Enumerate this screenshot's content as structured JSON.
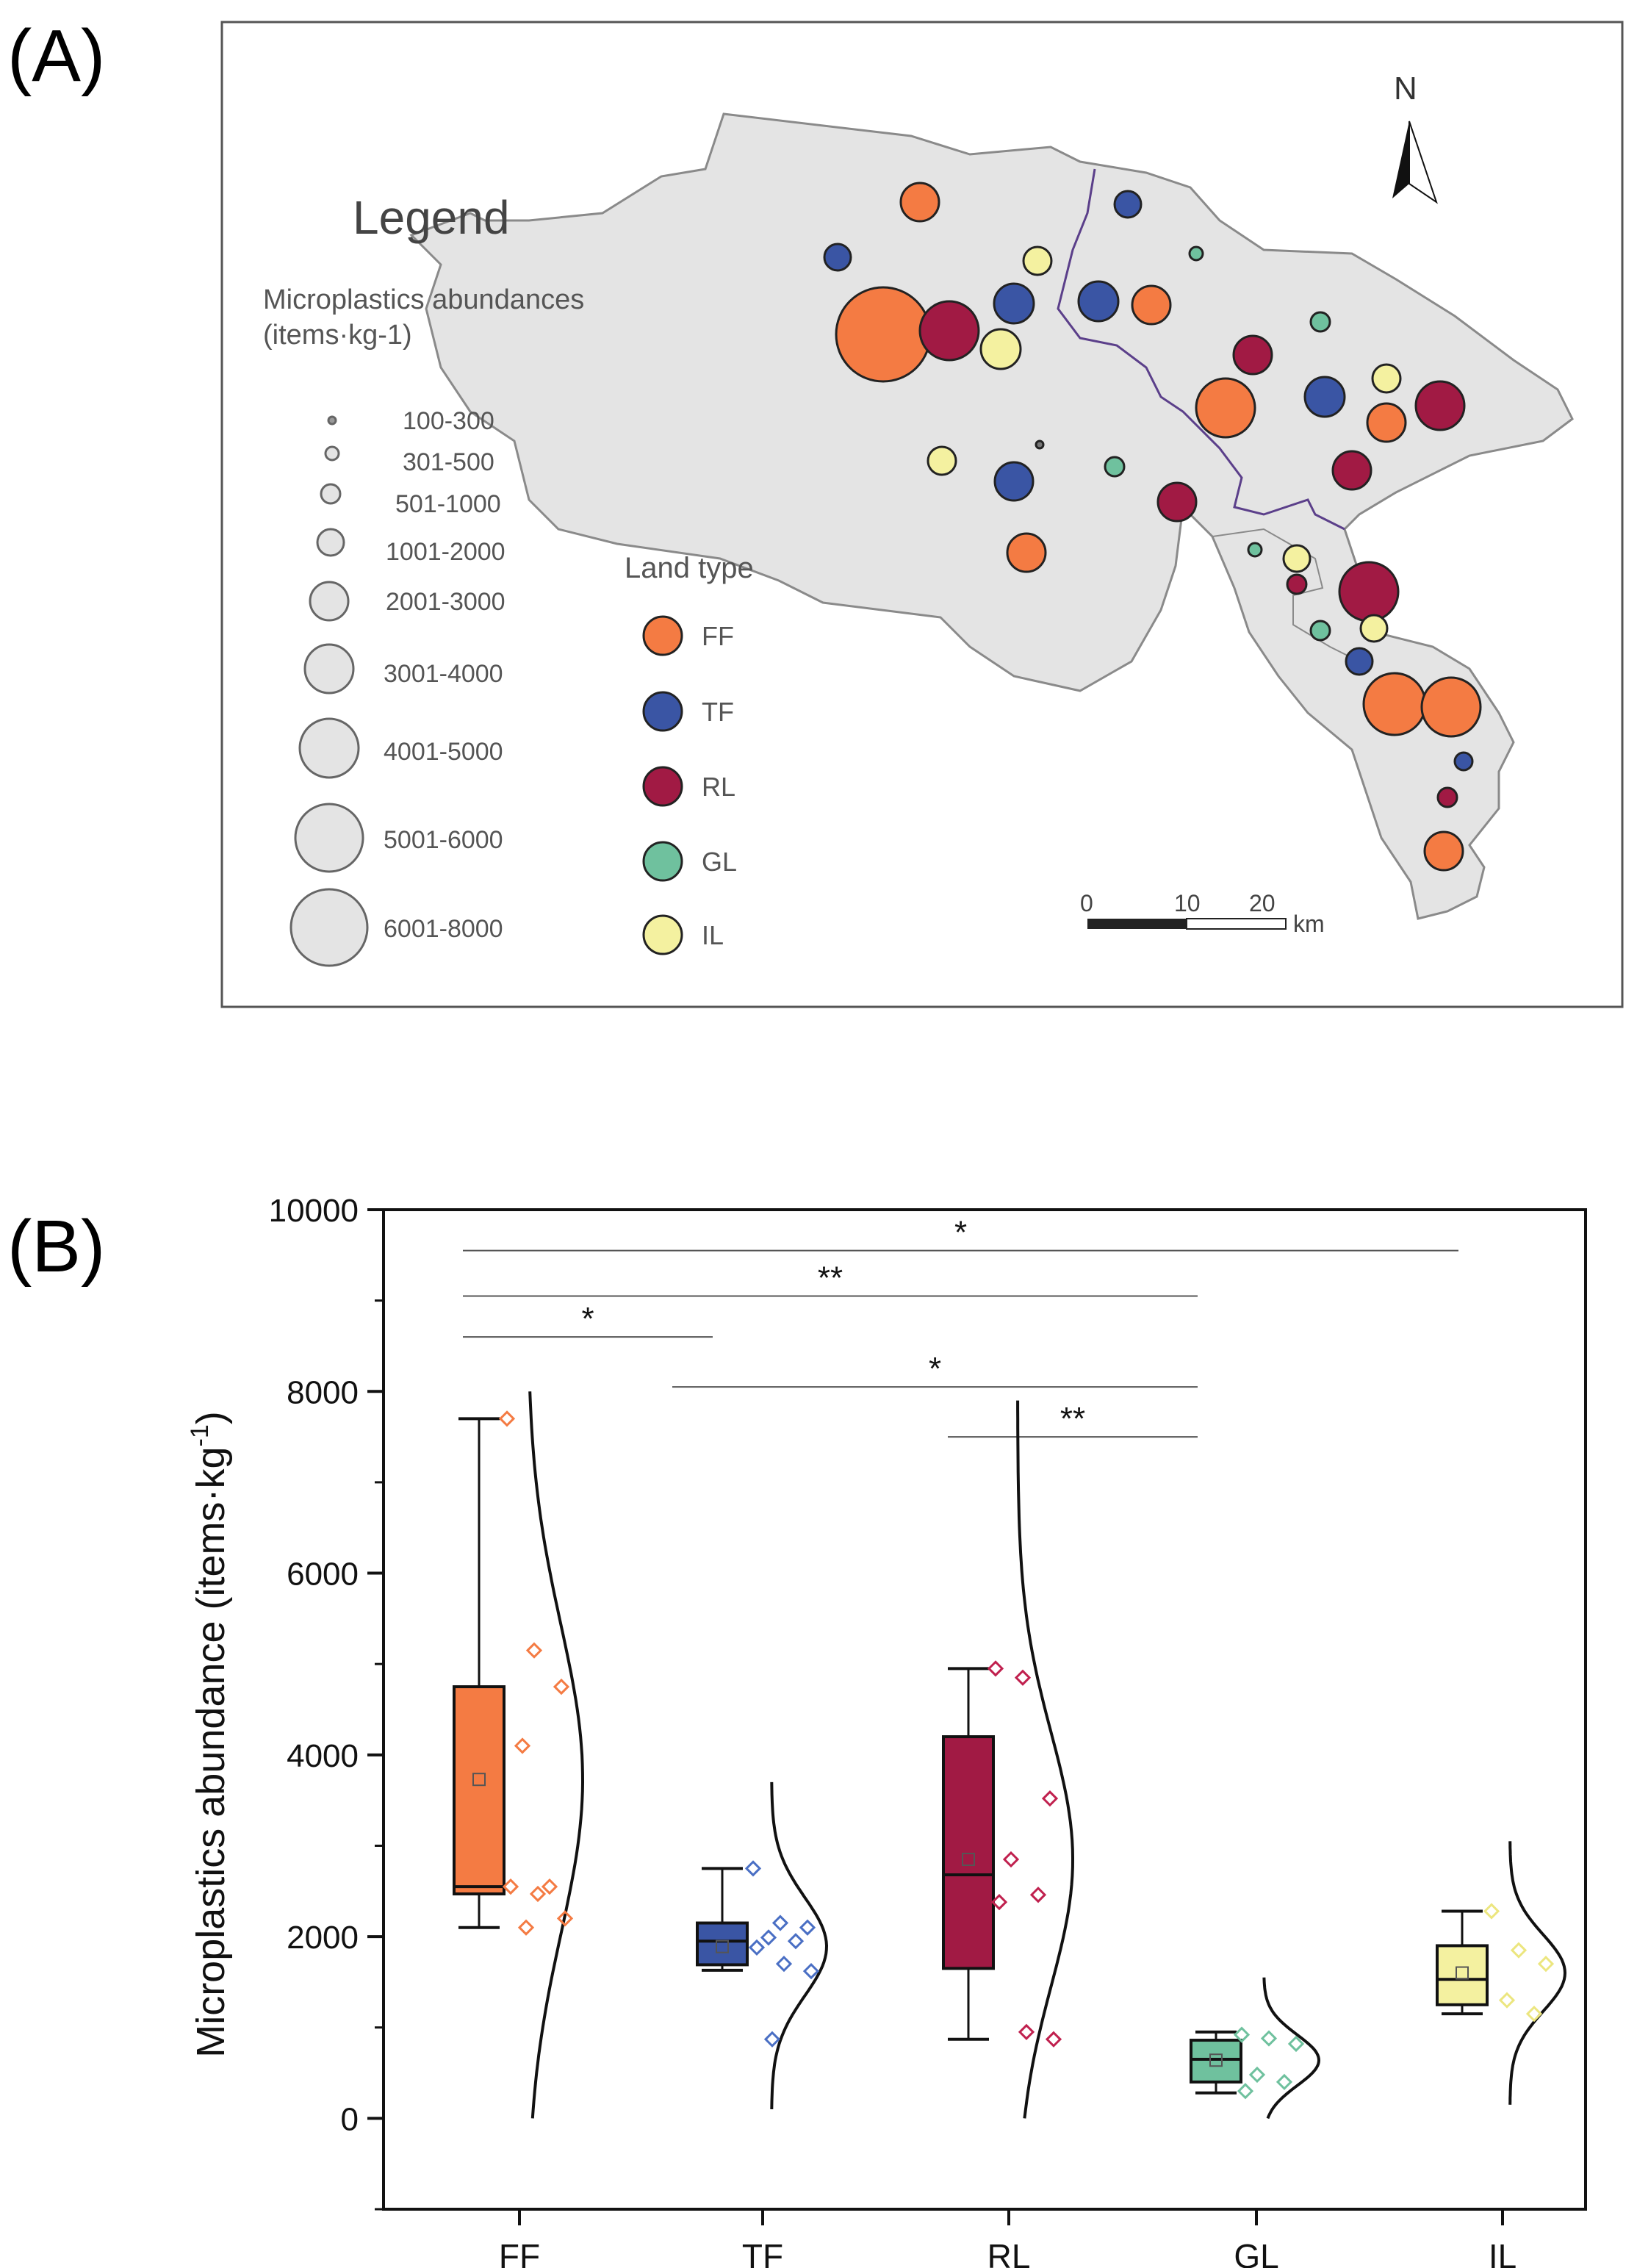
{
  "panel_a": {
    "label": "(A)",
    "legend_title": "Legend",
    "size_legend_title_line1": "Microplastics  abundances",
    "size_legend_title_line2": "(items·kg-1)",
    "size_classes": [
      "100-300",
      "301-500",
      "501-1000",
      "1001-2000",
      "2001-3000",
      "3001-4000",
      "4001-5000",
      "5001-6000",
      "6001-8000"
    ],
    "land_type_title": "Land type",
    "land_types": [
      {
        "code": "FF",
        "color": "#f47b43"
      },
      {
        "code": "TF",
        "color": "#3a55a4"
      },
      {
        "code": "RL",
        "color": "#a11a44"
      },
      {
        "code": "GL",
        "color": "#6fc19e"
      },
      {
        "code": "IL",
        "color": "#f4f1a0"
      }
    ],
    "north_label": "N",
    "scale_ticks": [
      "0",
      "10",
      "20"
    ],
    "scale_unit": "km"
  },
  "chart_data": {
    "type": "box",
    "panel_label": "(B)",
    "categories": [
      "FF",
      "TF",
      "RL",
      "GL",
      "IL"
    ],
    "ylabel_main": "Microplastics abundance (items·kg",
    "ylabel_sup": "-1",
    "ylabel_close": ")",
    "ylim": [
      -1000,
      10000
    ],
    "yticks": [
      0,
      2000,
      4000,
      6000,
      8000,
      10000
    ],
    "ytick_labels": [
      "0",
      "2000",
      "4000",
      "6000",
      "8000",
      "10000"
    ],
    "colors": [
      "#f47b43",
      "#3a55a4",
      "#a11a44",
      "#6fc19e",
      "#f4f1a0"
    ],
    "dot_colors": [
      "#f47b43",
      "#4a6fc4",
      "#c0204e",
      "#6fc19e",
      "#ece67f"
    ],
    "boxes": [
      {
        "cat": "FF",
        "whisker_low": 2100,
        "q1": 2470,
        "median": 2550,
        "q3": 4750,
        "whisker_high": 7700,
        "mean": 3730
      },
      {
        "cat": "TF",
        "whisker_low": 1630,
        "q1": 1690,
        "median": 1950,
        "q3": 2150,
        "whisker_high": 2750,
        "mean": 1890
      },
      {
        "cat": "RL",
        "whisker_low": 870,
        "q1": 1650,
        "median": 2680,
        "q3": 4200,
        "whisker_high": 4950,
        "mean": 2850
      },
      {
        "cat": "GL",
        "whisker_low": 280,
        "q1": 400,
        "median": 650,
        "q3": 860,
        "whisker_high": 950,
        "mean": 640
      },
      {
        "cat": "IL",
        "whisker_low": 1150,
        "q1": 1250,
        "median": 1530,
        "q3": 1900,
        "whisker_high": 2280,
        "mean": 1600
      }
    ],
    "points": [
      [
        7700,
        5150,
        4750,
        4100,
        2550,
        2550,
        2470,
        2200,
        2100
      ],
      [
        2750,
        2150,
        2100,
        1990,
        1950,
        1880,
        1700,
        1620,
        870
      ],
      [
        4950,
        4850,
        3520,
        2850,
        2460,
        2380,
        950,
        870
      ],
      [
        920,
        880,
        820,
        480,
        400,
        300
      ],
      [
        2280,
        1850,
        1700,
        1300,
        1150
      ]
    ],
    "distributions": [
      {
        "cat": "FF",
        "mean": 3730,
        "sd": 1700,
        "y_min": 0,
        "y_max": 8000
      },
      {
        "cat": "TF",
        "mean": 1890,
        "sd": 540,
        "y_min": 100,
        "y_max": 3700
      },
      {
        "cat": "RL",
        "mean": 2850,
        "sd": 1400,
        "y_min": 0,
        "y_max": 7900
      },
      {
        "cat": "GL",
        "mean": 640,
        "sd": 280,
        "y_min": 0,
        "y_max": 1550
      },
      {
        "cat": "IL",
        "mean": 1600,
        "sd": 420,
        "y_min": 150,
        "y_max": 3050
      }
    ],
    "significance": [
      {
        "from": "FF",
        "to": "IL",
        "label": "*",
        "y": 9550
      },
      {
        "from": "FF",
        "to": "GL",
        "label": "**",
        "y": 9050
      },
      {
        "from": "FF",
        "to": "TF",
        "label": "*",
        "y": 8600
      },
      {
        "from": "TF",
        "to": "GL",
        "label": "*",
        "y": 8050
      },
      {
        "from": "RL",
        "to": "GL",
        "label": "**",
        "y": 7500
      }
    ]
  }
}
